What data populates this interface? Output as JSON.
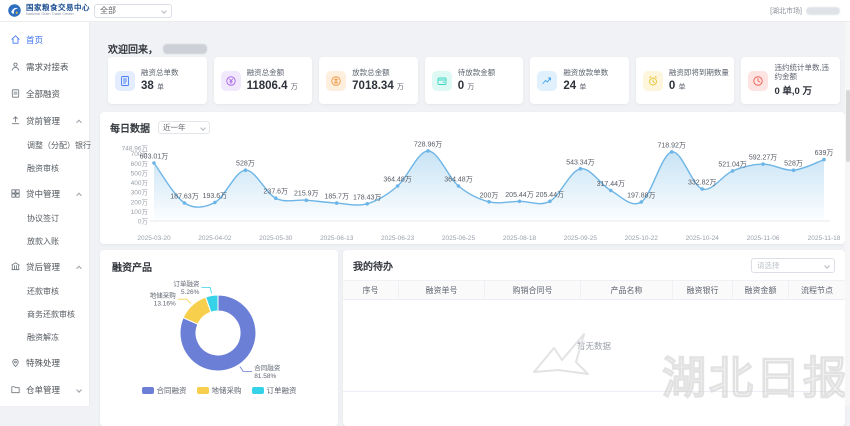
{
  "header": {
    "brand_cn": "国家粮食交易中心",
    "brand_en": "National Grain Trade Center",
    "scope_select_value": "全部",
    "market_tag": "[湖北市场]"
  },
  "sidebar": {
    "items": [
      {
        "id": "home",
        "label": "首页",
        "icon": "home",
        "type": "top",
        "active": true
      },
      {
        "id": "demand-table",
        "label": "需求对接表",
        "icon": "user",
        "type": "top"
      },
      {
        "id": "all-financing",
        "label": "全部融资",
        "icon": "list",
        "type": "top"
      },
      {
        "id": "preloan-management",
        "label": "贷前管理",
        "icon": "upload",
        "type": "group",
        "expanded": true
      },
      {
        "id": "adjust-bank",
        "label": "调整（分配）银行",
        "type": "child"
      },
      {
        "id": "financing-review",
        "label": "融资审核",
        "type": "child"
      },
      {
        "id": "midloan-management",
        "label": "贷中管理",
        "icon": "layers",
        "type": "group",
        "expanded": true
      },
      {
        "id": "agreement-signing",
        "label": "协议签订",
        "type": "child"
      },
      {
        "id": "loan-entry",
        "label": "放款入账",
        "type": "child"
      },
      {
        "id": "postloan-management",
        "label": "贷后管理",
        "icon": "bank",
        "type": "group",
        "expanded": true
      },
      {
        "id": "repayment-review",
        "label": "还款审核",
        "type": "child"
      },
      {
        "id": "business-repayment-review",
        "label": "商务还款审核",
        "type": "child"
      },
      {
        "id": "financing-unfreeze",
        "label": "融资解冻",
        "type": "child"
      },
      {
        "id": "special-handling",
        "label": "特殊处理",
        "icon": "pin",
        "type": "top"
      },
      {
        "id": "warehouse-receipt",
        "label": "仓单管理",
        "icon": "folder",
        "type": "group",
        "expanded": false
      }
    ]
  },
  "main": {
    "welcome_prefix": "欢迎回来，",
    "stats": [
      {
        "id": "financing-total-count",
        "title": "融资总单数",
        "value": "38",
        "unit": "单",
        "icon": "doc",
        "icon_color": "#4b7ef5",
        "icon_bg": "#e3edfd"
      },
      {
        "id": "financing-total-amount",
        "title": "融资总金额",
        "value": "11806.4",
        "unit": "万",
        "icon": "money",
        "icon_color": "#a968ea",
        "icon_bg": "#f2e8fd"
      },
      {
        "id": "loan-total-amount",
        "title": "放款总金额",
        "value": "7018.34",
        "unit": "万",
        "icon": "coin",
        "icon_color": "#f09a45",
        "icon_bg": "#fdeede"
      },
      {
        "id": "pending-loan-amount",
        "title": "待放款金额",
        "value": "0",
        "unit": "万",
        "icon": "wallet",
        "icon_color": "#3ad6c5",
        "icon_bg": "#def8f4"
      },
      {
        "id": "financing-loan-count",
        "title": "融资放款单数",
        "value": "24",
        "unit": "单",
        "icon": "trend",
        "icon_color": "#3d9ff0",
        "icon_bg": "#e0f0fd"
      },
      {
        "id": "financing-expiring-count",
        "title": "融资即将到期数量",
        "value": "0",
        "unit": "单",
        "icon": "alarm",
        "icon_color": "#e8c53a",
        "icon_bg": "#fdf6dc"
      },
      {
        "id": "default-stats",
        "title": "违约统计单数,违约金额",
        "value": "0 单,0 万",
        "unit": "",
        "icon": "clock",
        "icon_color": "#ec6156",
        "icon_bg": "#fde3e1",
        "compact": true
      }
    ],
    "todo": {
      "title": "我的待办",
      "select_placeholder": "请选择",
      "columns": [
        "序号",
        "融资单号",
        "购销合同号",
        "产品名称",
        "融资银行",
        "融资金额",
        "流程节点"
      ],
      "empty_text": "暂无数据"
    }
  },
  "chart_data": [
    {
      "type": "line",
      "title": "每日数据",
      "range_label": "近一年",
      "unit": "万",
      "y_max": 748.96,
      "line_color": "#6db5e6",
      "y_ticks": [
        {
          "value": 0,
          "label": "0万"
        },
        {
          "value": 100,
          "label": "100万"
        },
        {
          "value": 200,
          "label": "200万"
        },
        {
          "value": 300,
          "label": "300万"
        },
        {
          "value": 400,
          "label": "400万"
        },
        {
          "value": 500,
          "label": "500万"
        },
        {
          "value": 600,
          "label": "600万"
        },
        {
          "value": 700,
          "label": "700万"
        },
        {
          "value": 748.96,
          "label": "748.96万"
        }
      ],
      "x_labels": [
        "2025-03-20",
        "2025-04-02",
        "2025-05-30",
        "2025-06-13",
        "2025-06-23",
        "2025-06-25",
        "2025-08-18",
        "2025-09-25",
        "2025-10-22",
        "2025-10-24",
        "2025-11-06",
        "2025-11-18"
      ],
      "points": [
        {
          "label": "603.01万",
          "value": 603.01
        },
        {
          "label": "187.63万",
          "value": 187.63
        },
        {
          "label": "193.6万",
          "value": 193.6
        },
        {
          "label": "528万",
          "value": 528
        },
        {
          "label": "237.6万",
          "value": 237.6
        },
        {
          "label": "215.9万",
          "value": 215.9
        },
        {
          "label": "185.7万",
          "value": 185.7
        },
        {
          "label": "178.43万",
          "value": 178.43
        },
        {
          "label": "364.48万",
          "value": 364.48
        },
        {
          "label": "728.96万",
          "value": 728.96
        },
        {
          "label": "364.48万",
          "value": 364.48
        },
        {
          "label": "200万",
          "value": 200
        },
        {
          "label": "205.44万",
          "value": 205.44
        },
        {
          "label": "205.44万",
          "value": 205.44
        },
        {
          "label": "543.34万",
          "value": 543.34
        },
        {
          "label": "317.44万",
          "value": 317.44
        },
        {
          "label": "197.88万",
          "value": 197.88
        },
        {
          "label": "718.92万",
          "value": 718.92
        },
        {
          "label": "332.82万",
          "value": 332.82
        },
        {
          "label": "521.04万",
          "value": 521.04
        },
        {
          "label": "592.27万",
          "value": 592.27
        },
        {
          "label": "528万",
          "value": 528
        },
        {
          "label": "639万",
          "value": 639
        }
      ]
    },
    {
      "type": "pie",
      "title": "融资产品",
      "slices": [
        {
          "name": "合同融资",
          "pct": 81.58,
          "color": "#6b7fd6"
        },
        {
          "name": "地储采购",
          "pct": 13.16,
          "color": "#f7cf4d"
        },
        {
          "name": "订单融资",
          "pct": 5.26,
          "color": "#35d2e8"
        }
      ]
    }
  ],
  "watermark_text": "湖北日报"
}
